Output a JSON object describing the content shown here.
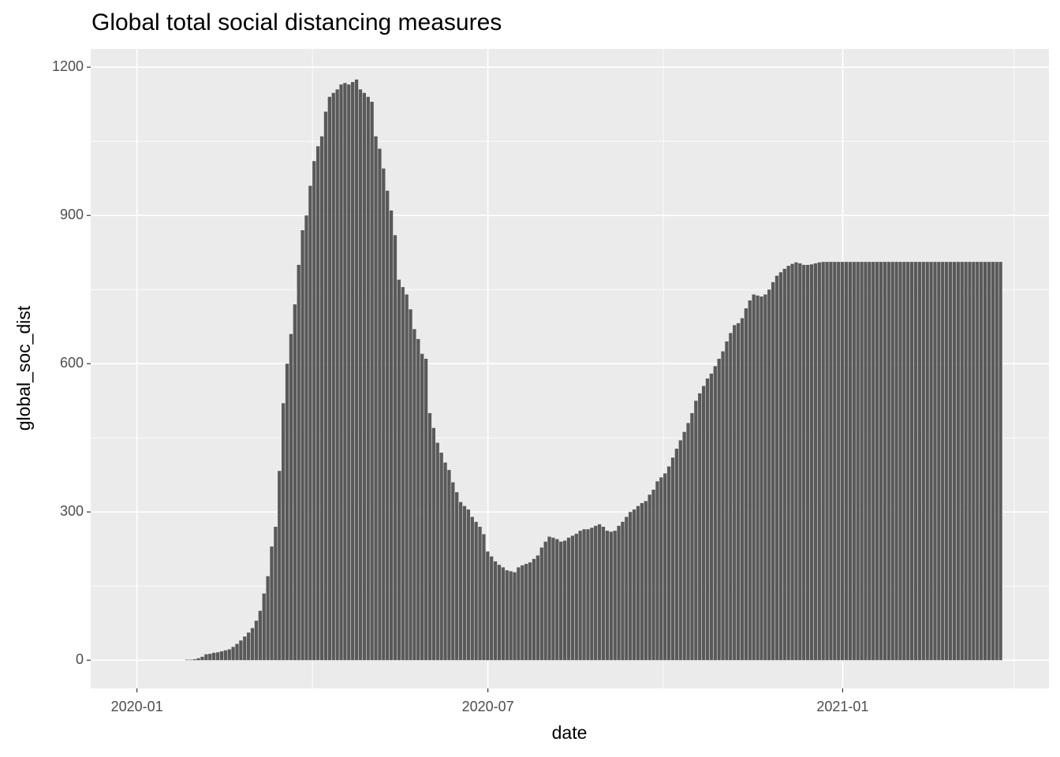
{
  "chart_data": {
    "type": "bar",
    "title": "Global total social distancing measures",
    "x_label": "date",
    "y_label": "global_soc_dist",
    "color": "#595959",
    "grid": true,
    "xlim": [
      -24,
      473
    ],
    "xticks": [
      {
        "value": 0,
        "label": "2020-01"
      },
      {
        "value": 182,
        "label": "2020-07"
      },
      {
        "value": 366,
        "label": "2021-01"
      }
    ],
    "ylim": [
      -57,
      1237
    ],
    "yticks": [
      0,
      300,
      600,
      900,
      1200
    ],
    "x": [
      26,
      28,
      30,
      32,
      34,
      36,
      38,
      40,
      42,
      44,
      46,
      48,
      50,
      52,
      54,
      56,
      58,
      60,
      62,
      64,
      66,
      68,
      70,
      72,
      74,
      76,
      78,
      80,
      82,
      84,
      86,
      88,
      90,
      92,
      94,
      96,
      98,
      100,
      102,
      104,
      106,
      108,
      110,
      112,
      114,
      116,
      118,
      120,
      122,
      124,
      126,
      128,
      130,
      132,
      134,
      136,
      138,
      140,
      142,
      144,
      146,
      148,
      150,
      152,
      154,
      156,
      158,
      160,
      162,
      164,
      166,
      168,
      170,
      172,
      174,
      176,
      178,
      180,
      182,
      184,
      186,
      188,
      190,
      192,
      194,
      196,
      198,
      200,
      202,
      204,
      206,
      208,
      210,
      212,
      214,
      216,
      218,
      220,
      222,
      224,
      226,
      228,
      230,
      232,
      234,
      236,
      238,
      240,
      242,
      244,
      246,
      248,
      250,
      252,
      254,
      256,
      258,
      260,
      262,
      264,
      266,
      268,
      270,
      272,
      274,
      276,
      278,
      280,
      282,
      284,
      286,
      288,
      290,
      292,
      294,
      296,
      298,
      300,
      302,
      304,
      306,
      308,
      310,
      312,
      314,
      316,
      318,
      320,
      322,
      324,
      326,
      328,
      330,
      332,
      334,
      336,
      338,
      340,
      342,
      344,
      346,
      348,
      350,
      352,
      354,
      356,
      358,
      360,
      362,
      364,
      366,
      368,
      370,
      372,
      374,
      376,
      378,
      380,
      382,
      384,
      386,
      388,
      390,
      392,
      394,
      396,
      398,
      400,
      402,
      404,
      406,
      408,
      410,
      412,
      414,
      416,
      418,
      420,
      422,
      424,
      426,
      428,
      430,
      432,
      434,
      436,
      438,
      440,
      442,
      444,
      446,
      448
    ],
    "values": [
      1,
      1,
      2,
      4,
      7,
      12,
      13,
      15,
      16,
      18,
      20,
      22,
      27,
      33,
      40,
      48,
      56,
      65,
      80,
      100,
      135,
      170,
      230,
      270,
      383,
      520,
      600,
      660,
      720,
      800,
      870,
      900,
      960,
      1010,
      1040,
      1060,
      1110,
      1140,
      1148,
      1155,
      1165,
      1168,
      1165,
      1170,
      1175,
      1155,
      1148,
      1140,
      1130,
      1060,
      1035,
      995,
      950,
      910,
      860,
      770,
      755,
      740,
      710,
      670,
      650,
      620,
      610,
      500,
      470,
      440,
      420,
      400,
      385,
      360,
      340,
      320,
      312,
      305,
      290,
      280,
      270,
      255,
      220,
      210,
      200,
      193,
      188,
      182,
      180,
      178,
      188,
      192,
      195,
      198,
      205,
      212,
      228,
      240,
      250,
      248,
      245,
      240,
      242,
      248,
      252,
      256,
      262,
      265,
      265,
      268,
      272,
      275,
      270,
      262,
      260,
      262,
      272,
      280,
      290,
      300,
      305,
      312,
      318,
      322,
      335,
      345,
      362,
      370,
      378,
      392,
      410,
      428,
      445,
      462,
      480,
      500,
      525,
      540,
      555,
      570,
      580,
      595,
      610,
      625,
      645,
      662,
      678,
      682,
      692,
      712,
      728,
      740,
      738,
      736,
      740,
      750,
      765,
      778,
      785,
      792,
      798,
      802,
      805,
      803,
      800,
      800,
      801,
      803,
      805,
      806,
      806,
      806,
      806,
      806,
      806,
      806,
      806,
      806,
      806,
      806,
      806,
      806,
      806,
      806,
      806,
      806,
      806,
      806,
      806,
      806,
      806,
      806,
      806,
      806,
      806,
      806,
      806,
      806,
      806,
      806,
      806,
      806,
      806,
      806,
      806,
      806,
      806,
      806,
      806,
      806,
      806,
      806,
      806,
      806,
      806,
      806
    ]
  }
}
